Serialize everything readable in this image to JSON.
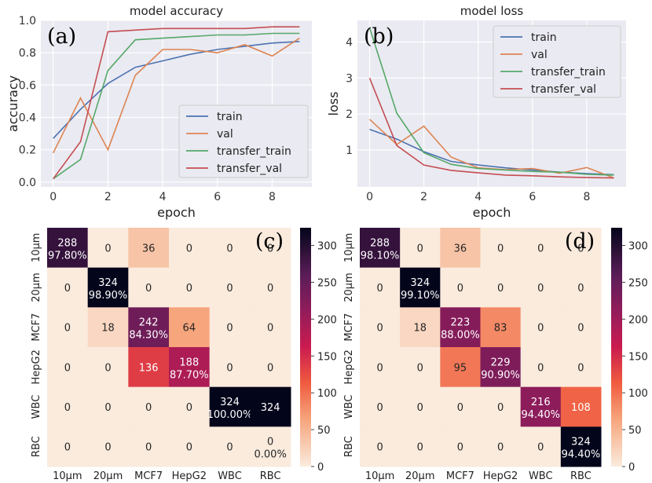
{
  "chart_data": [
    {
      "type": "line",
      "id": "a",
      "panel_label": "(a)",
      "title": "model accuracy",
      "xlabel": "epoch",
      "ylabel": "accuracy",
      "xlim": [
        -0.45,
        9.45
      ],
      "ylim": [
        -0.03,
        1.0
      ],
      "xticks": [
        0,
        2,
        4,
        6,
        8
      ],
      "yticks": [
        0.0,
        0.2,
        0.4,
        0.6,
        0.8,
        1.0
      ],
      "ytick_labels": [
        "0.0",
        "0.2",
        "0.4",
        "0.6",
        "0.8",
        "1.0"
      ],
      "legend_position": "lower-right",
      "x": [
        0,
        1,
        2,
        3,
        4,
        5,
        6,
        7,
        8,
        9
      ],
      "series": [
        {
          "name": "train",
          "color": "#4c72b0",
          "values": [
            0.27,
            0.45,
            0.61,
            0.71,
            0.75,
            0.79,
            0.82,
            0.84,
            0.86,
            0.87
          ]
        },
        {
          "name": "val",
          "color": "#dd8452",
          "values": [
            0.18,
            0.52,
            0.2,
            0.66,
            0.82,
            0.82,
            0.8,
            0.85,
            0.78,
            0.89
          ]
        },
        {
          "name": "transfer_train",
          "color": "#55a868",
          "values": [
            0.02,
            0.14,
            0.69,
            0.88,
            0.89,
            0.9,
            0.91,
            0.91,
            0.92,
            0.92
          ]
        },
        {
          "name": "transfer_val",
          "color": "#c44e52",
          "values": [
            0.02,
            0.25,
            0.93,
            0.94,
            0.95,
            0.95,
            0.95,
            0.95,
            0.96,
            0.96
          ]
        }
      ]
    },
    {
      "type": "line",
      "id": "b",
      "panel_label": "(b)",
      "title": "model loss",
      "xlabel": "epoch",
      "ylabel": "loss",
      "xlim": [
        -0.45,
        9.45
      ],
      "ylim": [
        -0.03,
        4.6
      ],
      "xticks": [
        0,
        2,
        4,
        6,
        8
      ],
      "yticks": [
        1,
        2,
        3,
        4
      ],
      "ytick_labels": [
        "1",
        "2",
        "3",
        "4"
      ],
      "legend_position": "top-right",
      "x": [
        0,
        1,
        2,
        3,
        4,
        5,
        6,
        7,
        8,
        9
      ],
      "series": [
        {
          "name": "train",
          "color": "#4c72b0",
          "values": [
            1.57,
            1.3,
            0.95,
            0.68,
            0.58,
            0.5,
            0.44,
            0.38,
            0.34,
            0.31
          ]
        },
        {
          "name": "val",
          "color": "#dd8452",
          "values": [
            1.85,
            1.15,
            1.66,
            0.8,
            0.5,
            0.45,
            0.48,
            0.35,
            0.51,
            0.22
          ]
        },
        {
          "name": "transfer_train",
          "color": "#55a868",
          "values": [
            4.4,
            2.02,
            0.92,
            0.6,
            0.48,
            0.44,
            0.4,
            0.38,
            0.32,
            0.3
          ]
        },
        {
          "name": "transfer_val",
          "color": "#c44e52",
          "values": [
            3.0,
            1.12,
            0.58,
            0.43,
            0.36,
            0.3,
            0.28,
            0.25,
            0.23,
            0.22
          ]
        }
      ]
    },
    {
      "type": "heatmap",
      "id": "c",
      "panel_label": "(c)",
      "row_labels": [
        "10µm",
        "20µm",
        "MCF7",
        "HepG2",
        "WBC",
        "RBC"
      ],
      "col_labels": [
        "10µm",
        "20µm",
        "MCF7",
        "HepG2",
        "WBC",
        "RBC"
      ],
      "values": [
        [
          288,
          0,
          36,
          0,
          0,
          0
        ],
        [
          0,
          324,
          0,
          0,
          0,
          0
        ],
        [
          0,
          18,
          242,
          64,
          0,
          0
        ],
        [
          0,
          0,
          136,
          188,
          0,
          0
        ],
        [
          0,
          0,
          0,
          0,
          324,
          324
        ],
        [
          0,
          0,
          0,
          0,
          0,
          0
        ]
      ],
      "diag_percent": [
        "97.80%",
        "98.90%",
        "84.30%",
        "87.70%",
        "100.00%",
        "0.00%"
      ],
      "vmin": 0,
      "vmax": 324,
      "colorbar_ticks": [
        0,
        50,
        100,
        150,
        200,
        250,
        300
      ]
    },
    {
      "type": "heatmap",
      "id": "d",
      "panel_label": "(d)",
      "row_labels": [
        "10µm",
        "20µm",
        "MCF7",
        "HepG2",
        "WBC",
        "RBC"
      ],
      "col_labels": [
        "10µm",
        "20µm",
        "MCF7",
        "HepG2",
        "WBC",
        "RBC"
      ],
      "values": [
        [
          288,
          0,
          36,
          0,
          0,
          0
        ],
        [
          0,
          324,
          0,
          0,
          0,
          0
        ],
        [
          0,
          18,
          223,
          83,
          0,
          0
        ],
        [
          0,
          0,
          95,
          229,
          0,
          0
        ],
        [
          0,
          0,
          0,
          0,
          216,
          108
        ],
        [
          0,
          0,
          0,
          0,
          0,
          324
        ]
      ],
      "diag_percent": [
        "98.10%",
        "99.10%",
        "88.00%",
        "90.90%",
        "94.40%",
        "94.40%"
      ],
      "vmin": 0,
      "vmax": 324,
      "colorbar_ticks": [
        0,
        50,
        100,
        150,
        200,
        250,
        300
      ]
    }
  ]
}
